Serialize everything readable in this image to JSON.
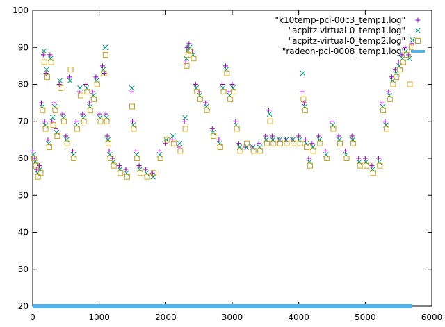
{
  "chart_data": {
    "type": "scatter",
    "title": "",
    "xlabel": "",
    "ylabel": "",
    "xlim": [
      0,
      6000
    ],
    "ylim": [
      20,
      100
    ],
    "xticks": [
      0,
      1000,
      2000,
      3000,
      4000,
      5000,
      6000
    ],
    "yticks": [
      20,
      30,
      40,
      50,
      60,
      70,
      80,
      90,
      100
    ],
    "grid": false,
    "legend_position": "top-right",
    "series": [
      {
        "name": "\"k10temp-pci-00c3_temp1.log\"",
        "marker": "plus",
        "color": "#9400d3",
        "x": [
          0,
          30,
          60,
          100,
          130,
          160,
          180,
          200,
          230,
          260,
          290,
          320,
          350,
          400,
          450,
          500,
          550,
          600,
          650,
          700,
          750,
          800,
          850,
          900,
          950,
          1000,
          1050,
          1080,
          1100,
          1120,
          1150,
          1200,
          1300,
          1400,
          1480,
          1500,
          1550,
          1600,
          1700,
          1800,
          1900,
          2000,
          2100,
          2200,
          2280,
          2300,
          2320,
          2350,
          2400,
          2450,
          2500,
          2600,
          2700,
          2800,
          2850,
          2900,
          2950,
          3000,
          3050,
          3100,
          3200,
          3300,
          3400,
          3500,
          3550,
          3600,
          3700,
          3800,
          3900,
          4000,
          4050,
          4080,
          4100,
          4150,
          4200,
          4300,
          4400,
          4500,
          4600,
          4700,
          4800,
          4900,
          5000,
          5100,
          5200,
          5250,
          5300,
          5350,
          5400,
          5450,
          5500,
          5550,
          5600,
          5650,
          5700
        ],
        "y": [
          62,
          60,
          57,
          58,
          75,
          88,
          70,
          83,
          65,
          88,
          70,
          75,
          68,
          80,
          72,
          66,
          82,
          62,
          70,
          78,
          72,
          80,
          75,
          78,
          82,
          72,
          85,
          83,
          72,
          66,
          62,
          60,
          58,
          57,
          78,
          70,
          62,
          58,
          57,
          56,
          62,
          64,
          65,
          63,
          70,
          86,
          90,
          91,
          89,
          80,
          78,
          75,
          68,
          65,
          80,
          85,
          78,
          80,
          70,
          64,
          63,
          63,
          64,
          66,
          73,
          66,
          65,
          65,
          65,
          66,
          78,
          75,
          65,
          60,
          64,
          66,
          62,
          70,
          66,
          62,
          66,
          60,
          60,
          58,
          60,
          75,
          70,
          78,
          82,
          84,
          86,
          88,
          90,
          88,
          91
        ]
      },
      {
        "name": "\"acpitz-virtual-0_temp1.log\"",
        "marker": "cross",
        "color": "#009e73",
        "x": [
          10,
          40,
          70,
          110,
          140,
          170,
          190,
          210,
          240,
          270,
          300,
          330,
          360,
          410,
          460,
          510,
          560,
          610,
          660,
          710,
          760,
          810,
          860,
          910,
          960,
          1010,
          1060,
          1090,
          1110,
          1130,
          1160,
          1210,
          1310,
          1410,
          1490,
          1510,
          1560,
          1610,
          1710,
          1810,
          1910,
          2010,
          2110,
          2210,
          2290,
          2310,
          2330,
          2360,
          2410,
          2460,
          2510,
          2610,
          2710,
          2810,
          2860,
          2910,
          2960,
          3010,
          3060,
          3110,
          3210,
          3310,
          3410,
          3510,
          3560,
          3610,
          3710,
          3810,
          3910,
          4010,
          4060,
          4090,
          4110,
          4160,
          4210,
          4310,
          4410,
          4510,
          4610,
          4710,
          4810,
          4910,
          5010,
          5110,
          5210,
          5260,
          5310,
          5360,
          5410,
          5460,
          5510,
          5560,
          5610,
          5660,
          5710
        ],
        "y": [
          61,
          59,
          56,
          57,
          74,
          89,
          69,
          84,
          64,
          87,
          71,
          74,
          67,
          81,
          71,
          65,
          81,
          61,
          69,
          79,
          71,
          79,
          74,
          77,
          81,
          71,
          84,
          90,
          71,
          65,
          61,
          59,
          57,
          56,
          79,
          69,
          61,
          57,
          56,
          55,
          61,
          65,
          66,
          64,
          71,
          87,
          89,
          90,
          88,
          79,
          77,
          74,
          67,
          64,
          79,
          84,
          77,
          79,
          69,
          63,
          63,
          63,
          63,
          65,
          72,
          65,
          65,
          65,
          65,
          65,
          83,
          74,
          64,
          59,
          63,
          65,
          61,
          69,
          65,
          61,
          65,
          59,
          59,
          57,
          59,
          74,
          69,
          77,
          81,
          83,
          85,
          87,
          89,
          87,
          92
        ]
      },
      {
        "name": "\"acpitz-virtual-0_temp2.log\"",
        "marker": "square",
        "color": "#d4a017",
        "x": [
          20,
          50,
          80,
          120,
          150,
          175,
          195,
          220,
          250,
          280,
          310,
          340,
          370,
          420,
          470,
          520,
          570,
          620,
          670,
          720,
          770,
          820,
          870,
          920,
          970,
          1020,
          1070,
          1095,
          1115,
          1140,
          1170,
          1220,
          1320,
          1420,
          1495,
          1520,
          1570,
          1620,
          1720,
          1820,
          1920,
          2020,
          2120,
          2220,
          2295,
          2315,
          2340,
          2370,
          2420,
          2470,
          2520,
          2620,
          2720,
          2820,
          2870,
          2920,
          2970,
          3020,
          3070,
          3120,
          3220,
          3320,
          3420,
          3520,
          3570,
          3620,
          3720,
          3820,
          3920,
          4020,
          4070,
          4095,
          4120,
          4170,
          4220,
          4320,
          4420,
          4520,
          4620,
          4720,
          4820,
          4920,
          5020,
          5120,
          5220,
          5270,
          5320,
          5370,
          5420,
          5470,
          5520,
          5570,
          5620,
          5670,
          5695
        ],
        "y": [
          60,
          58,
          55,
          56,
          73,
          86,
          68,
          82,
          63,
          86,
          69,
          73,
          66,
          79,
          70,
          64,
          84,
          60,
          68,
          77,
          70,
          78,
          73,
          76,
          80,
          70,
          83,
          88,
          70,
          64,
          60,
          58,
          56,
          55,
          74,
          68,
          60,
          56,
          55,
          56,
          60,
          65,
          64,
          62,
          68,
          85,
          88,
          89,
          87,
          78,
          76,
          73,
          66,
          63,
          78,
          83,
          76,
          78,
          68,
          62,
          64,
          62,
          62,
          64,
          70,
          64,
          64,
          64,
          64,
          64,
          76,
          73,
          63,
          58,
          62,
          64,
          60,
          68,
          64,
          60,
          64,
          58,
          58,
          56,
          58,
          73,
          68,
          76,
          80,
          82,
          84,
          86,
          88,
          80,
          90
        ]
      },
      {
        "name": "\"radeon-pci-0008_temp1.log\"",
        "marker": "dot",
        "color": "#56b4e9",
        "x": [
          0,
          5700
        ],
        "y": [
          20,
          20
        ]
      }
    ]
  }
}
